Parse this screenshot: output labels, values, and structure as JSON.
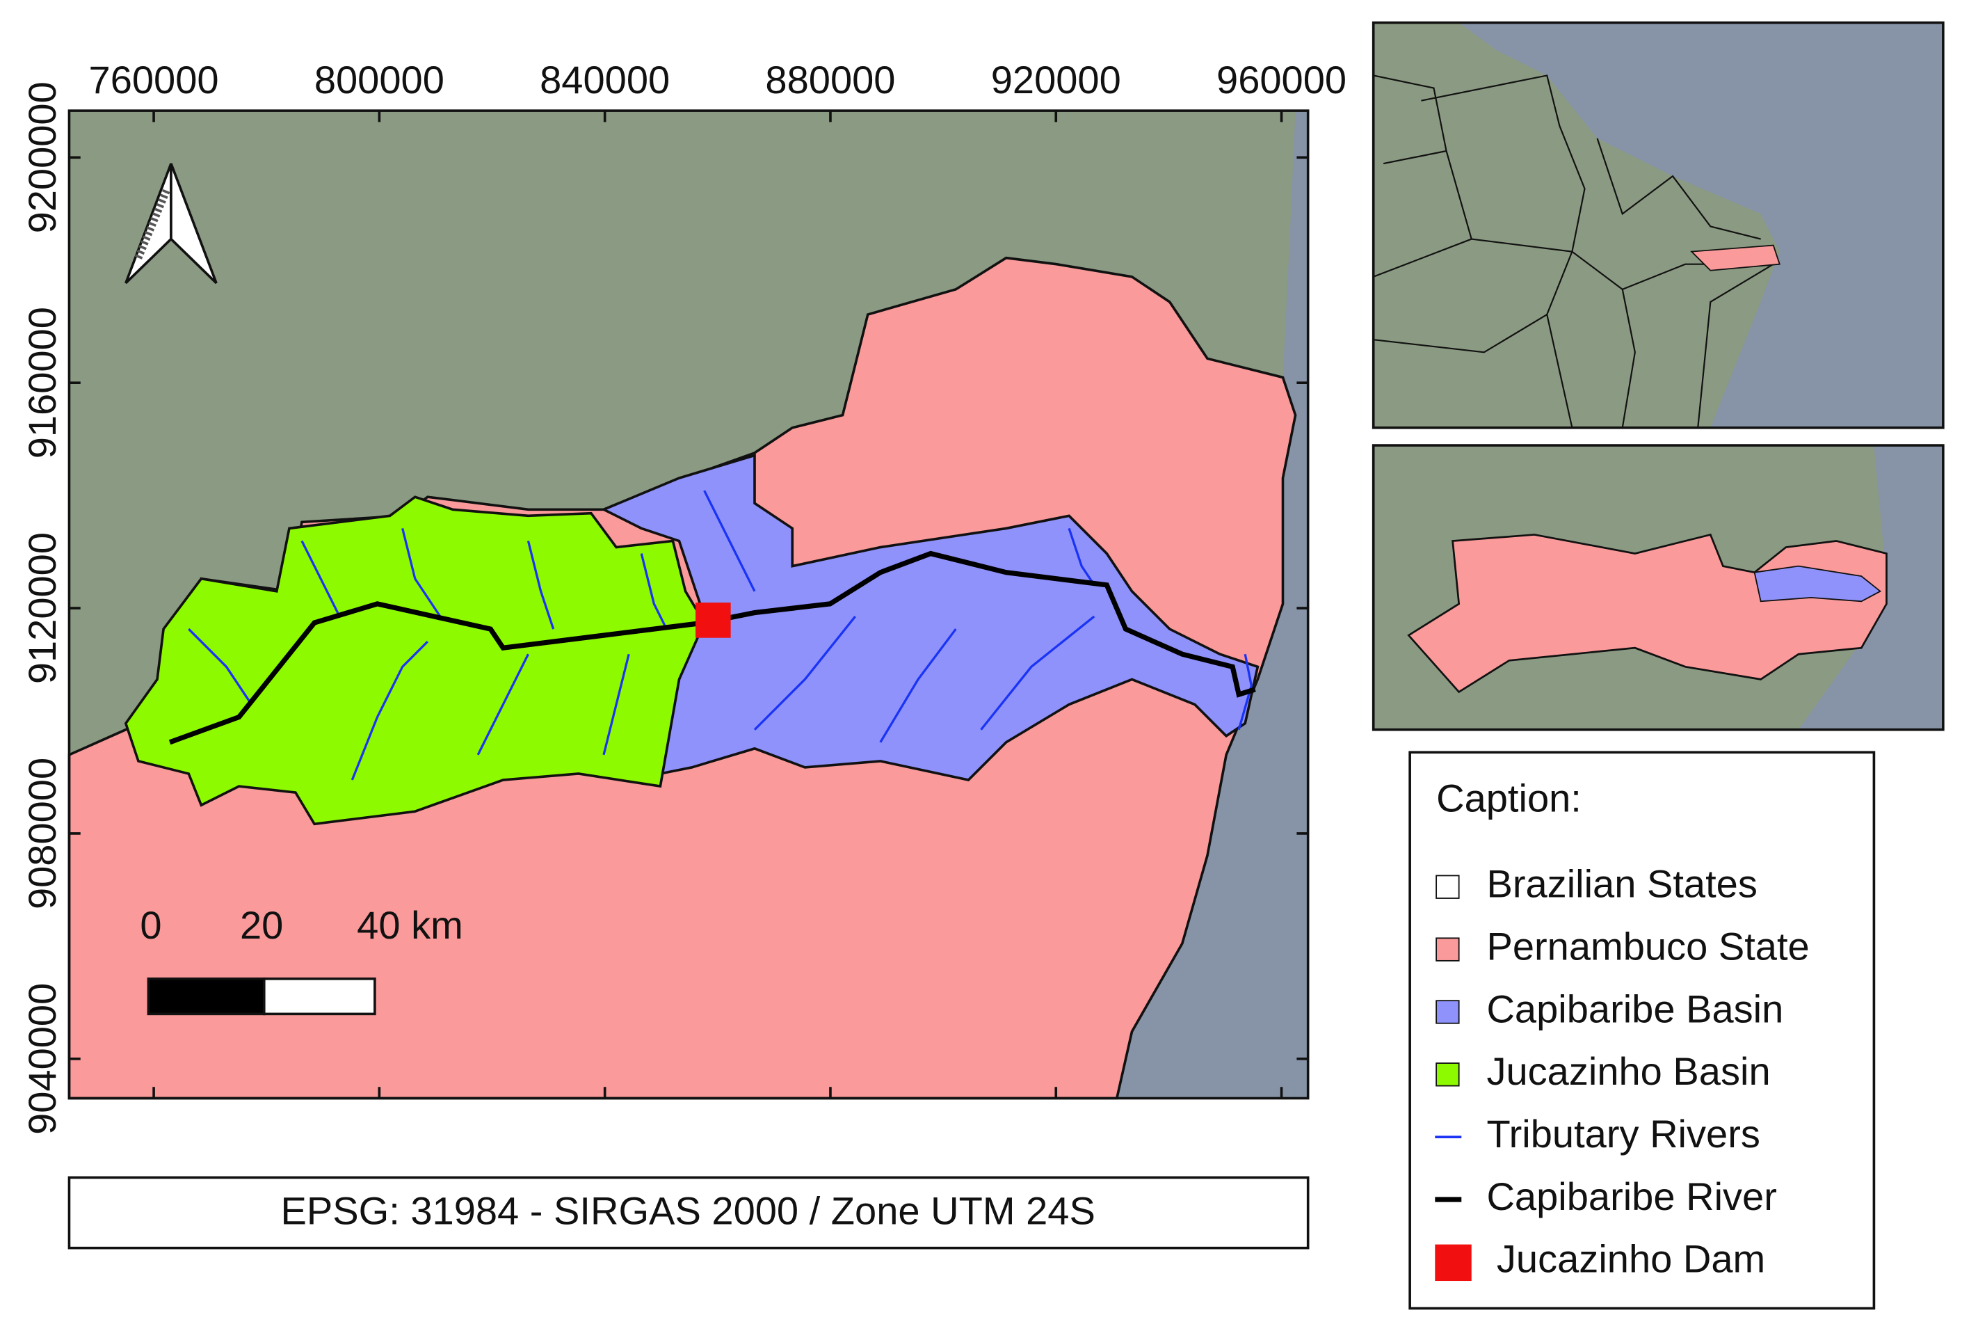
{
  "map": {
    "xlim": [
      745000,
      964700
    ],
    "ylim": [
      9033000,
      9208300
    ],
    "xticks": [
      760000,
      800000,
      840000,
      880000,
      920000,
      960000
    ],
    "yticks": [
      9040000,
      9080000,
      9120000,
      9160000,
      9200000
    ],
    "scale_bar": {
      "labels": [
        "0",
        "20",
        "40 km"
      ]
    },
    "crs": "EPSG: 31984 - SIRGAS 2000 / Zone UTM 24S",
    "legend": {
      "title": "Caption:",
      "items": [
        {
          "label": "Brazilian States",
          "color": "#ffffff",
          "kind": "box"
        },
        {
          "label": "Pernambuco State",
          "color": "#fa9a9a",
          "kind": "box"
        },
        {
          "label": "Capibaribe Basin",
          "color": "#8e92fa",
          "kind": "box"
        },
        {
          "label": "Jucazinho Basin",
          "color": "#8efa00",
          "kind": "box"
        },
        {
          "label": "Tributary Rivers",
          "color": "#1a33f5",
          "kind": "line"
        },
        {
          "label": "Capibaribe River",
          "color": "#000000",
          "kind": "line"
        },
        {
          "label": "Jucazinho Dam",
          "color": "#f20f0f",
          "kind": "square"
        }
      ]
    }
  }
}
